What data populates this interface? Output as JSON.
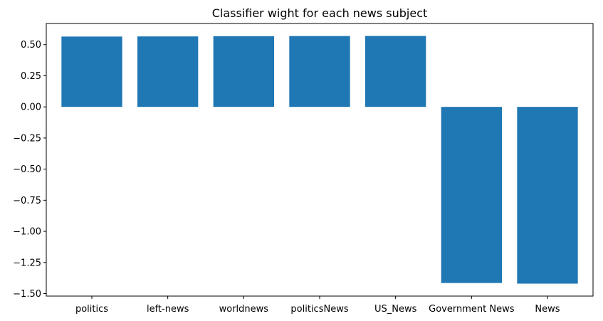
{
  "chart_data": {
    "type": "bar",
    "title": "Classifier wight for each news subject",
    "xlabel": "",
    "ylabel": "",
    "categories": [
      "politics",
      "left-news",
      "worldnews",
      "politicsNews",
      "US_News",
      "Government News",
      "News"
    ],
    "values": [
      0.565,
      0.566,
      0.568,
      0.569,
      0.57,
      -1.415,
      -1.42
    ],
    "ylim": [
      -1.52,
      0.67
    ],
    "yticks": [
      0.5,
      0.25,
      0.0,
      -0.25,
      -0.5,
      -0.75,
      -1.0,
      -1.25,
      -1.5
    ],
    "ytick_labels": [
      "0.50",
      "0.25",
      "0.00",
      "−0.25",
      "−0.50",
      "−0.75",
      "−1.00",
      "−1.25",
      "−1.50"
    ],
    "bar_color": "#1f77b4",
    "grid": false,
    "legend": "none"
  }
}
